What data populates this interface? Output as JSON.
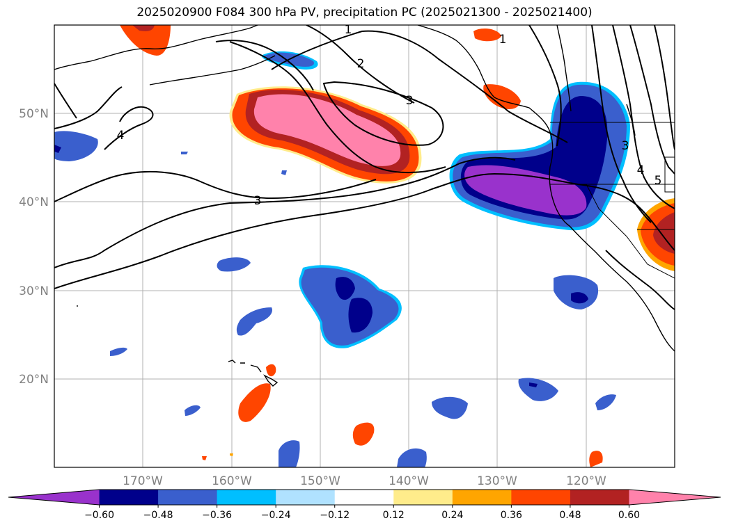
{
  "title": "2025020900 F084 300 hPa PV, precipitation PC (2025021300 - 2025021400)",
  "lon_labels": [
    "170°W",
    "160°W",
    "150°W",
    "140°W",
    "130°W",
    "120°W"
  ],
  "lat_labels": [
    "50°N",
    "40°N",
    "30°N",
    "20°N"
  ],
  "contour_labels": [
    "1",
    "2",
    "3",
    "4",
    "3",
    "3",
    "4",
    "5",
    "1"
  ],
  "colorbar": {
    "ticks": [
      "−0.60",
      "−0.48",
      "−0.36",
      "−0.24",
      "−0.12",
      "0.12",
      "0.24",
      "0.36",
      "0.48",
      "0.60"
    ],
    "colors": [
      "#9932cc",
      "#00008b",
      "#3a5fcd",
      "#00bfff",
      "#b0e2ff",
      "#ffffff",
      "#ffec8b",
      "#ffa500",
      "#ff4500",
      "#b22222",
      "#ff82ab"
    ]
  },
  "legend_colors": {
    "pv_contour": "#000000",
    "coast": "#000000"
  }
}
